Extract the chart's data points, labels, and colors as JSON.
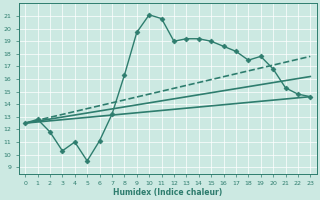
{
  "xlabel": "Humidex (Indice chaleur)",
  "ylabel": "",
  "xlim": [
    -0.5,
    23.5
  ],
  "ylim": [
    8.5,
    22.0
  ],
  "yticks": [
    9,
    10,
    11,
    12,
    13,
    14,
    15,
    16,
    17,
    18,
    19,
    20,
    21
  ],
  "xticks": [
    0,
    1,
    2,
    3,
    4,
    5,
    6,
    7,
    8,
    9,
    10,
    11,
    12,
    13,
    14,
    15,
    16,
    17,
    18,
    19,
    20,
    21,
    22,
    23
  ],
  "bg_color": "#cce9e2",
  "line_color": "#2e7d6e",
  "series": [
    {
      "x": [
        0,
        1,
        2,
        3,
        4,
        5,
        6,
        7,
        8,
        9,
        10,
        11,
        12,
        13,
        14,
        15,
        16,
        17,
        18,
        19,
        20,
        21,
        22,
        23
      ],
      "y": [
        12.5,
        12.8,
        11.8,
        10.3,
        11.0,
        9.5,
        11.1,
        13.2,
        16.3,
        19.7,
        21.1,
        20.8,
        19.0,
        19.2,
        19.2,
        19.0,
        18.6,
        18.2,
        17.5,
        17.8,
        16.8,
        15.3,
        14.8,
        14.6
      ],
      "marker": "D",
      "markersize": 2.5,
      "linewidth": 1.0,
      "linestyle": "-"
    },
    {
      "x": [
        0,
        23
      ],
      "y": [
        12.5,
        14.6
      ],
      "marker": null,
      "markersize": 0,
      "linewidth": 1.2,
      "linestyle": "-"
    },
    {
      "x": [
        0,
        23
      ],
      "y": [
        12.5,
        16.2
      ],
      "marker": null,
      "markersize": 0,
      "linewidth": 1.2,
      "linestyle": "-"
    },
    {
      "x": [
        0,
        23
      ],
      "y": [
        12.5,
        17.8
      ],
      "marker": null,
      "markersize": 0,
      "linewidth": 1.2,
      "linestyle": "--"
    }
  ]
}
